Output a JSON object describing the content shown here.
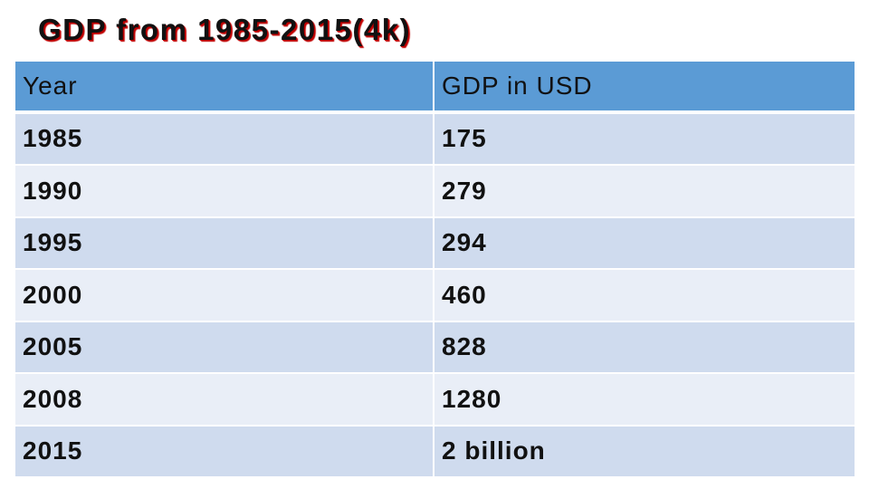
{
  "title": "GDP from 1985-2015(4k)",
  "table": {
    "header": [
      "Year",
      "GDP in USD"
    ],
    "rows": [
      [
        "1985",
        "175"
      ],
      [
        "1990",
        "279"
      ],
      [
        "1995",
        "294"
      ],
      [
        "2000",
        "460"
      ],
      [
        "2005",
        "828"
      ],
      [
        "2008",
        "1280"
      ],
      [
        "2015",
        "2 billion"
      ]
    ]
  }
}
